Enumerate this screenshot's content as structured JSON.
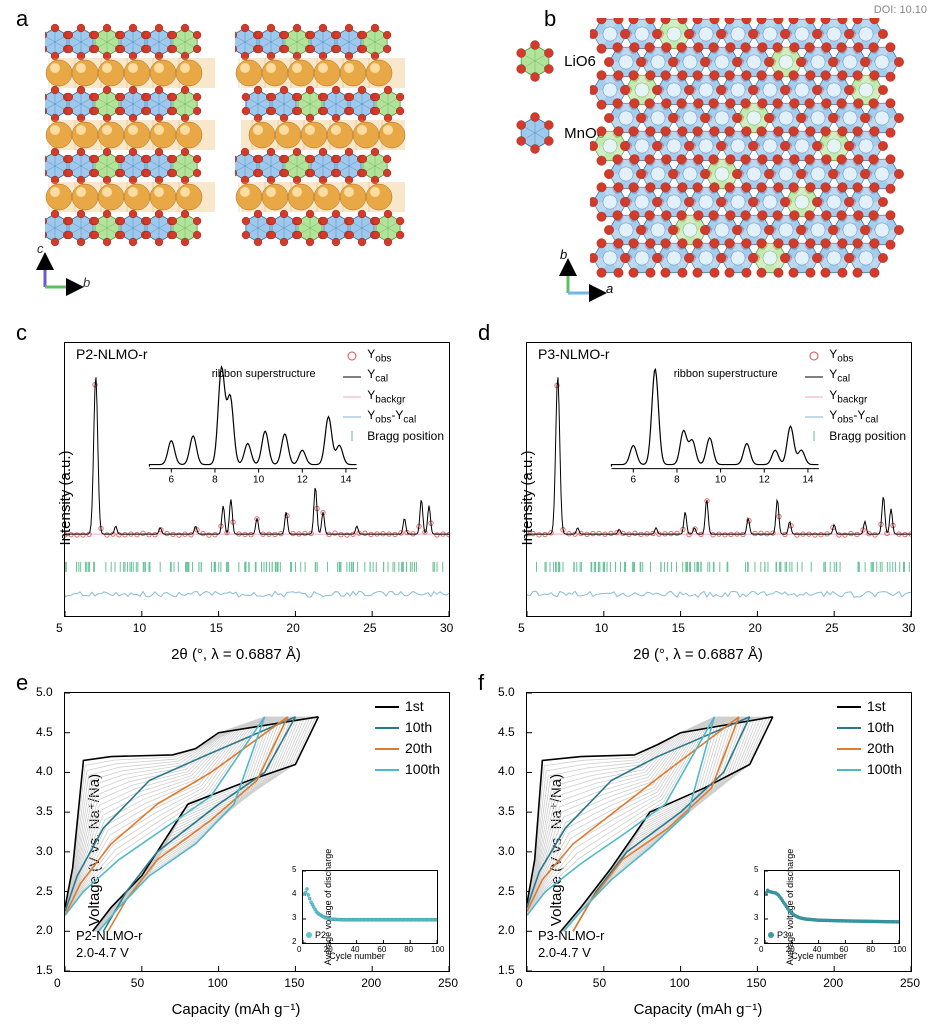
{
  "doi": "DOI: 10.10",
  "panels": {
    "a": {
      "label": "a",
      "legend": [
        {
          "name": "LiO6",
          "color": "#97d97a",
          "sphere": "#d22"
        },
        {
          "name": "MnO6",
          "color": "#7eb6e6",
          "sphere": "#d22"
        }
      ],
      "axes": {
        "v": "c",
        "h": "b",
        "v_color": "#6a5acd",
        "h_color": "#5fbf5f"
      },
      "colors": {
        "oct_blue": "#7eb6e6",
        "oct_blue_edge": "#2c6fa8",
        "oct_green": "#97d97a",
        "oct_green_edge": "#4a9b3a",
        "na_sphere": "#e8a845",
        "o_sphere": "#d43a2a",
        "na_poly_fill": "rgba(232,168,69,0.28)"
      },
      "layer_pattern": [
        "B",
        "B",
        "G",
        "B",
        "B",
        "G"
      ],
      "stacks": 3
    },
    "b": {
      "label": "b",
      "axes": {
        "v": "b",
        "h": "a",
        "v_color": "#5fbf5f",
        "h_color": "#6fb7e6"
      },
      "rows": 9,
      "cols": 9,
      "green_positions": [
        [
          0,
          2
        ],
        [
          1,
          5
        ],
        [
          2,
          1
        ],
        [
          2,
          8
        ],
        [
          3,
          4
        ],
        [
          4,
          0
        ],
        [
          4,
          7
        ],
        [
          5,
          3
        ],
        [
          6,
          6
        ],
        [
          7,
          2
        ],
        [
          8,
          5
        ]
      ],
      "colors": {
        "blue": "#7eb6e6",
        "blue_edge": "#3a6f9e",
        "green": "#a8e090",
        "green_edge": "#4a9b3a",
        "o": "#d43a2a",
        "center": "#e8f4fb"
      }
    },
    "c": {
      "label": "c",
      "title": "P2-NLMO-r",
      "ylabel": "Intensity (a.u.)",
      "xlabel": "2θ (°, λ = 0.6887 Å)",
      "xlim": [
        5,
        30
      ],
      "xticks": [
        5,
        10,
        15,
        20,
        25,
        30
      ],
      "legend": [
        {
          "sym": "circle",
          "color": "#e34b4b",
          "label": "Yobs",
          "sub": "obs"
        },
        {
          "sym": "line",
          "color": "#000000",
          "label": "Ycal",
          "sub": "cal"
        },
        {
          "sym": "line",
          "color": "#f2a6c4",
          "label": "Ybackgr",
          "sub": "backgr"
        },
        {
          "sym": "line",
          "color": "#7eb6d6",
          "label": "Yobs-Ycal",
          "sub": "obs-cal"
        },
        {
          "sym": "tick",
          "color": "#5fbf8f",
          "label": "Bragg position"
        }
      ],
      "inset_label": "ribbon superstructure",
      "inset_xticks": [
        6,
        8,
        10,
        12,
        14
      ],
      "main_peaks": [
        {
          "x": 7.0,
          "h": 1.0
        },
        {
          "x": 8.3,
          "h": 0.05
        },
        {
          "x": 11.2,
          "h": 0.04
        },
        {
          "x": 13.5,
          "h": 0.05
        },
        {
          "x": 15.3,
          "h": 0.18
        },
        {
          "x": 15.8,
          "h": 0.22
        },
        {
          "x": 17.5,
          "h": 0.1
        },
        {
          "x": 19.4,
          "h": 0.14
        },
        {
          "x": 21.3,
          "h": 0.3
        },
        {
          "x": 21.8,
          "h": 0.14
        },
        {
          "x": 24.0,
          "h": 0.05
        },
        {
          "x": 27.1,
          "h": 0.1
        },
        {
          "x": 28.2,
          "h": 0.22
        },
        {
          "x": 28.7,
          "h": 0.18
        }
      ],
      "inset_peaks": [
        {
          "x": 6.0,
          "h": 0.25
        },
        {
          "x": 7.0,
          "h": 0.3
        },
        {
          "x": 8.3,
          "h": 1.0
        },
        {
          "x": 8.7,
          "h": 0.7
        },
        {
          "x": 9.5,
          "h": 0.22
        },
        {
          "x": 10.3,
          "h": 0.35
        },
        {
          "x": 11.2,
          "h": 0.32
        },
        {
          "x": 12.0,
          "h": 0.15
        },
        {
          "x": 13.2,
          "h": 0.5
        },
        {
          "x": 13.7,
          "h": 0.2
        }
      ],
      "colors": {
        "obs": "#e36a6a",
        "cal": "#000",
        "diff": "#88bdd8",
        "bragg": "#66c299",
        "backgr": "#f2a6c4"
      }
    },
    "d": {
      "label": "d",
      "title": "P3-NLMO-r",
      "ylabel": "Intensity (a.u.)",
      "xlabel": "2θ (°, λ = 0.6887 Å)",
      "xlim": [
        5,
        30
      ],
      "xticks": [
        5,
        10,
        15,
        20,
        25,
        30
      ],
      "legend": [
        {
          "sym": "circle",
          "color": "#e34b4b",
          "label": "Yobs",
          "sub": "obs"
        },
        {
          "sym": "line",
          "color": "#000000",
          "label": "Ycal",
          "sub": "cal"
        },
        {
          "sym": "line",
          "color": "#f2a6c4",
          "label": "Ybackgr",
          "sub": "backgr"
        },
        {
          "sym": "line",
          "color": "#7eb6d6",
          "label": "Yobs-Ycal",
          "sub": "obs-cal"
        },
        {
          "sym": "tick",
          "color": "#5fbf8f",
          "label": "Bragg position"
        }
      ],
      "inset_label": "ribbon superstructure",
      "inset_xticks": [
        6,
        8,
        10,
        12,
        14
      ],
      "main_peaks": [
        {
          "x": 7.0,
          "h": 1.0
        },
        {
          "x": 8.3,
          "h": 0.04
        },
        {
          "x": 11.0,
          "h": 0.03
        },
        {
          "x": 13.4,
          "h": 0.04
        },
        {
          "x": 15.3,
          "h": 0.14
        },
        {
          "x": 15.9,
          "h": 0.04
        },
        {
          "x": 16.7,
          "h": 0.22
        },
        {
          "x": 19.4,
          "h": 0.1
        },
        {
          "x": 21.3,
          "h": 0.22
        },
        {
          "x": 22.1,
          "h": 0.08
        },
        {
          "x": 25.0,
          "h": 0.06
        },
        {
          "x": 27.0,
          "h": 0.08
        },
        {
          "x": 28.2,
          "h": 0.24
        },
        {
          "x": 28.7,
          "h": 0.16
        }
      ],
      "inset_peaks": [
        {
          "x": 6.0,
          "h": 0.2
        },
        {
          "x": 7.0,
          "h": 1.0
        },
        {
          "x": 8.3,
          "h": 0.35
        },
        {
          "x": 8.7,
          "h": 0.25
        },
        {
          "x": 9.5,
          "h": 0.28
        },
        {
          "x": 11.2,
          "h": 0.22
        },
        {
          "x": 12.5,
          "h": 0.15
        },
        {
          "x": 13.2,
          "h": 0.4
        },
        {
          "x": 13.7,
          "h": 0.15
        }
      ],
      "colors": {
        "obs": "#e36a6a",
        "cal": "#000",
        "diff": "#88bdd8",
        "bragg": "#66c299",
        "backgr": "#f2a6c4"
      }
    },
    "e": {
      "label": "e",
      "title_lines": [
        "P2-NLMO-r",
        "2.0-4.7 V"
      ],
      "ylabel": "Voltage (V vs. Na⁺/Na)",
      "xlabel": "Capacity (mAh g⁻¹)",
      "xlim": [
        0,
        250
      ],
      "xticks": [
        0,
        50,
        100,
        150,
        200,
        250
      ],
      "ylim": [
        1.5,
        5.0
      ],
      "yticks": [
        1.5,
        2.0,
        2.5,
        3.0,
        3.5,
        4.0,
        4.5,
        5.0
      ],
      "legend": [
        {
          "label": "1st",
          "color": "#000000"
        },
        {
          "label": "10th",
          "color": "#2b7a8c"
        },
        {
          "label": "20th",
          "color": "#e07b2e"
        },
        {
          "label": "100th",
          "color": "#4fb8c9"
        }
      ],
      "curves": {
        "charge_1": [
          [
            0,
            2.3
          ],
          [
            5,
            2.8
          ],
          [
            12,
            4.15
          ],
          [
            30,
            4.2
          ],
          [
            70,
            4.22
          ],
          [
            85,
            4.3
          ],
          [
            100,
            4.5
          ],
          [
            165,
            4.7
          ]
        ],
        "disch_1": [
          [
            165,
            4.7
          ],
          [
            150,
            4.1
          ],
          [
            120,
            3.9
          ],
          [
            80,
            3.6
          ],
          [
            50,
            2.7
          ],
          [
            30,
            2.3
          ],
          [
            18,
            2.0
          ]
        ],
        "charge_10": [
          [
            0,
            2.25
          ],
          [
            8,
            2.7
          ],
          [
            25,
            3.3
          ],
          [
            55,
            3.9
          ],
          [
            90,
            4.2
          ],
          [
            150,
            4.7
          ]
        ],
        "disch_10": [
          [
            150,
            4.7
          ],
          [
            130,
            4.0
          ],
          [
            100,
            3.6
          ],
          [
            60,
            3.0
          ],
          [
            40,
            2.5
          ],
          [
            25,
            2.0
          ]
        ],
        "charge_20": [
          [
            0,
            2.2
          ],
          [
            10,
            2.6
          ],
          [
            30,
            3.1
          ],
          [
            60,
            3.6
          ],
          [
            95,
            4.0
          ],
          [
            145,
            4.7
          ]
        ],
        "disch_20": [
          [
            145,
            4.7
          ],
          [
            125,
            3.9
          ],
          [
            95,
            3.4
          ],
          [
            60,
            2.9
          ],
          [
            40,
            2.4
          ],
          [
            28,
            2.0
          ]
        ],
        "charge_100": [
          [
            0,
            2.2
          ],
          [
            12,
            2.5
          ],
          [
            35,
            2.9
          ],
          [
            65,
            3.3
          ],
          [
            95,
            3.7
          ],
          [
            130,
            4.7
          ]
        ],
        "disch_100": [
          [
            130,
            4.7
          ],
          [
            110,
            3.6
          ],
          [
            85,
            3.1
          ],
          [
            55,
            2.7
          ],
          [
            35,
            2.3
          ],
          [
            22,
            2.0
          ]
        ]
      },
      "grey_curves": 20,
      "inset": {
        "ylabel": "Average voltage of discharge",
        "xlabel": "Cycle number",
        "xlim": [
          0,
          100
        ],
        "xticks": [
          0,
          20,
          40,
          60,
          80,
          100
        ],
        "ylim": [
          2,
          5
        ],
        "yticks": [
          2,
          3,
          4,
          5
        ],
        "legend": "P2",
        "marker_color": "#5cc7d4",
        "data": [
          [
            1,
            4.05
          ],
          [
            2,
            4.1
          ],
          [
            3,
            4.25
          ],
          [
            4,
            4.0
          ],
          [
            5,
            3.85
          ],
          [
            6,
            3.7
          ],
          [
            8,
            3.5
          ],
          [
            10,
            3.3
          ],
          [
            12,
            3.2
          ],
          [
            15,
            3.1
          ],
          [
            20,
            3.0
          ],
          [
            25,
            2.98
          ],
          [
            30,
            2.97
          ],
          [
            40,
            2.97
          ],
          [
            60,
            2.97
          ],
          [
            80,
            2.97
          ],
          [
            100,
            2.97
          ]
        ]
      }
    },
    "f": {
      "label": "f",
      "title_lines": [
        "P3-NLMO-r",
        "2.0-4.7 V"
      ],
      "ylabel": "Voltage (V vs. Na⁺/Na)",
      "xlabel": "Capacity (mAh g⁻¹)",
      "xlim": [
        0,
        250
      ],
      "xticks": [
        0,
        50,
        100,
        150,
        200,
        250
      ],
      "ylim": [
        1.5,
        5.0
      ],
      "yticks": [
        1.5,
        2.0,
        2.5,
        3.0,
        3.5,
        4.0,
        4.5,
        5.0
      ],
      "legend": [
        {
          "label": "1st",
          "color": "#000000"
        },
        {
          "label": "10th",
          "color": "#2b7a8c"
        },
        {
          "label": "20th",
          "color": "#e07b2e"
        },
        {
          "label": "100th",
          "color": "#4fb8c9"
        }
      ],
      "curves": {
        "charge_1": [
          [
            0,
            2.35
          ],
          [
            5,
            2.9
          ],
          [
            10,
            4.15
          ],
          [
            35,
            4.2
          ],
          [
            70,
            4.22
          ],
          [
            85,
            4.35
          ],
          [
            100,
            4.5
          ],
          [
            160,
            4.7
          ]
        ],
        "disch_1": [
          [
            160,
            4.7
          ],
          [
            145,
            4.1
          ],
          [
            115,
            3.8
          ],
          [
            80,
            3.5
          ],
          [
            55,
            2.8
          ],
          [
            35,
            2.3
          ],
          [
            22,
            2.0
          ]
        ],
        "charge_10": [
          [
            0,
            2.3
          ],
          [
            8,
            2.75
          ],
          [
            25,
            3.3
          ],
          [
            55,
            3.9
          ],
          [
            85,
            4.2
          ],
          [
            145,
            4.7
          ]
        ],
        "disch_10": [
          [
            145,
            4.7
          ],
          [
            128,
            4.0
          ],
          [
            100,
            3.5
          ],
          [
            65,
            3.0
          ],
          [
            45,
            2.5
          ],
          [
            30,
            2.0
          ]
        ],
        "charge_20": [
          [
            0,
            2.25
          ],
          [
            10,
            2.65
          ],
          [
            30,
            3.1
          ],
          [
            60,
            3.55
          ],
          [
            90,
            4.0
          ],
          [
            138,
            4.7
          ]
        ],
        "disch_20": [
          [
            138,
            4.7
          ],
          [
            120,
            3.8
          ],
          [
            92,
            3.3
          ],
          [
            62,
            2.9
          ],
          [
            42,
            2.4
          ],
          [
            30,
            2.0
          ]
        ],
        "charge_100": [
          [
            0,
            2.2
          ],
          [
            12,
            2.5
          ],
          [
            35,
            2.85
          ],
          [
            65,
            3.25
          ],
          [
            90,
            3.6
          ],
          [
            122,
            4.7
          ]
        ],
        "disch_100": [
          [
            122,
            4.7
          ],
          [
            105,
            3.5
          ],
          [
            80,
            3.05
          ],
          [
            55,
            2.65
          ],
          [
            35,
            2.25
          ],
          [
            24,
            2.0
          ]
        ]
      },
      "grey_curves": 20,
      "inset": {
        "ylabel": "Average voltage of discharge",
        "xlabel": "Cycle number",
        "xlim": [
          0,
          100
        ],
        "xticks": [
          0,
          20,
          40,
          60,
          80,
          100
        ],
        "ylim": [
          2,
          5
        ],
        "yticks": [
          2,
          3,
          4,
          5
        ],
        "legend": "P3",
        "marker_color": "#3a9aa8",
        "data": [
          [
            1,
            4.1
          ],
          [
            2,
            4.2
          ],
          [
            3,
            4.15
          ],
          [
            5,
            4.12
          ],
          [
            8,
            4.08
          ],
          [
            10,
            4.0
          ],
          [
            12,
            3.85
          ],
          [
            15,
            3.6
          ],
          [
            18,
            3.35
          ],
          [
            22,
            3.15
          ],
          [
            26,
            3.05
          ],
          [
            30,
            3.0
          ],
          [
            40,
            2.95
          ],
          [
            60,
            2.92
          ],
          [
            80,
            2.9
          ],
          [
            100,
            2.88
          ]
        ]
      }
    }
  }
}
